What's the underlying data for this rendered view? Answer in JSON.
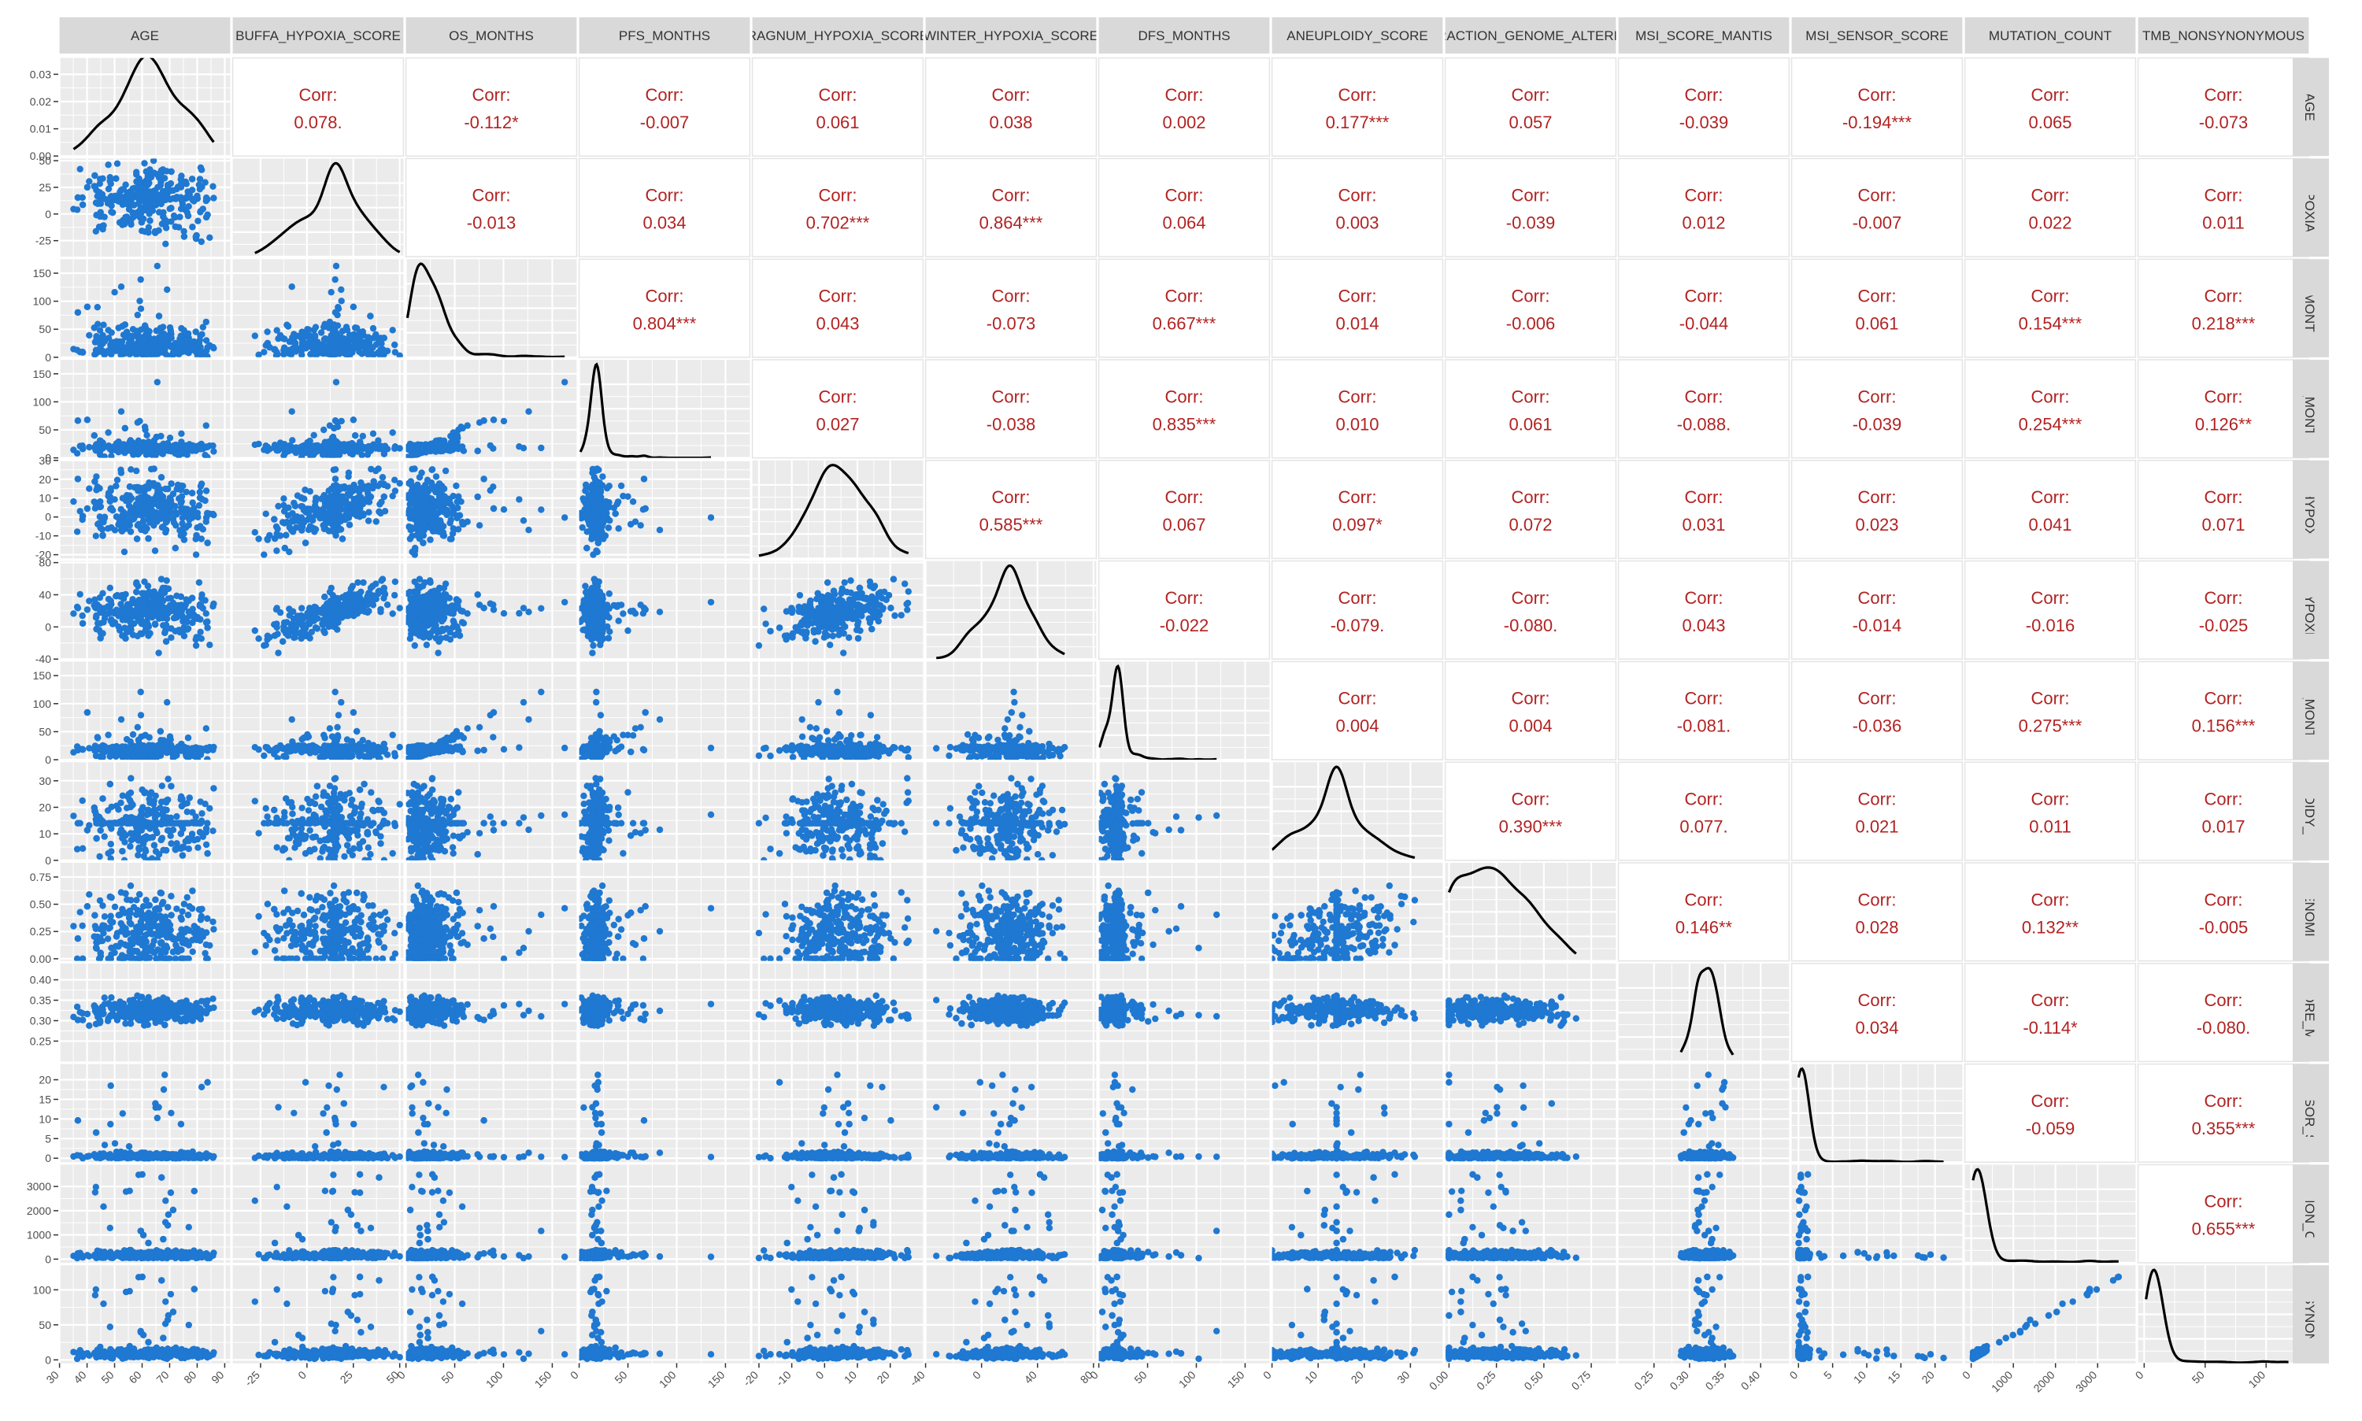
{
  "chart_data": {
    "type": "scatter",
    "title": "",
    "variables": [
      {
        "name": "AGE",
        "row_strip": "AGE",
        "lim": [
          30,
          92
        ],
        "ticks": [
          30,
          40,
          50,
          60,
          70,
          80,
          90
        ],
        "density_ticks": [
          0.0,
          0.01,
          0.02,
          0.03
        ],
        "density_tick_labels": [
          "0.00",
          "0.01",
          "0.02",
          "0.03"
        ],
        "density_lim": [
          0,
          0.036
        ]
      },
      {
        "name": "BUFFA_HYPOXIA_SCORE",
        "row_strip": "A_HYPOXIA_SC",
        "lim": [
          -40,
          52
        ],
        "ticks": [
          -25,
          0,
          25,
          50
        ],
        "row_ticks": [
          -25,
          0,
          25,
          50
        ]
      },
      {
        "name": "OS_MONTHS",
        "row_strip": "OS_MONTHS",
        "lim": [
          0,
          175
        ],
        "ticks": [
          0,
          50,
          100,
          150
        ]
      },
      {
        "name": "PFS_MONTHS",
        "row_strip": "PFS_MONTHS",
        "lim": [
          0,
          175
        ],
        "ticks": [
          0,
          50,
          100,
          150
        ]
      },
      {
        "name": "RAGNUM_HYPOXIA_SCORE",
        "row_strip": "UM_HYPOXIA_",
        "lim": [
          -22,
          30
        ],
        "ticks": [
          -20,
          -10,
          0,
          10,
          20
        ],
        "row_ticks": [
          -20,
          -10,
          0,
          10,
          20,
          30
        ]
      },
      {
        "name": "WINTER_HYPOXIA_SCORE",
        "row_strip": "ER_HYPOXIA_S",
        "lim": [
          -40,
          82
        ],
        "ticks": [
          -40,
          0,
          40,
          80
        ],
        "row_ticks": [
          -40,
          0,
          40,
          80
        ]
      },
      {
        "name": "DFS_MONTHS",
        "row_strip": "DFS_MONTHS",
        "lim": [
          0,
          175
        ],
        "ticks": [
          0,
          50,
          100,
          150
        ]
      },
      {
        "name": "ANEUPLOIDY_SCORE",
        "row_strip": "EUPLOIDY_SCO",
        "lim": [
          0,
          37
        ],
        "ticks": [
          0,
          10,
          20,
          30
        ]
      },
      {
        "name": "FRACTION_GENOME_ALTERED",
        "row_strip": "N_GENOME_A",
        "lim": [
          -0.02,
          0.88
        ],
        "ticks": [
          0.0,
          0.25,
          0.5,
          0.75
        ],
        "tick_labels": [
          "0.00",
          "0.25",
          "0.50",
          "0.75"
        ]
      },
      {
        "name": "MSI_SCORE_MANTIS",
        "row_strip": "_SCORE_MAN",
        "lim": [
          0.2,
          0.44
        ],
        "ticks": [
          0.25,
          0.3,
          0.35,
          0.4
        ],
        "row_ticks": [
          0.25,
          0.3,
          0.35,
          0.4
        ],
        "tick_labels": [
          "0.25",
          "0.30",
          "0.35",
          "0.40"
        ]
      },
      {
        "name": "MSI_SENSOR_SCORE",
        "row_strip": "_SENSOR_SCO",
        "lim": [
          -1,
          24
        ],
        "ticks": [
          0,
          5,
          10,
          15,
          20
        ]
      },
      {
        "name": "MUTATION_COUNT",
        "row_strip": "UTATION_COU",
        "lim": [
          -150,
          3900
        ],
        "ticks": [
          0,
          1000,
          2000,
          3000
        ]
      },
      {
        "name": "TMB_NONSYNONYMOUS",
        "row_strip": "NONSYNONYM",
        "lim": [
          -5,
          135
        ],
        "ticks": [
          0,
          50,
          100
        ]
      }
    ],
    "correlations": [
      [
        null,
        "0.078.",
        "-0.112*",
        "-0.007",
        "0.061",
        "0.038",
        "0.002",
        "0.177***",
        "0.057",
        "-0.039",
        "-0.194***",
        "0.065",
        "-0.073"
      ],
      [
        null,
        null,
        "-0.013",
        "0.034",
        "0.702***",
        "0.864***",
        "0.064",
        "0.003",
        "-0.039",
        "0.012",
        "-0.007",
        "0.022",
        "0.011"
      ],
      [
        null,
        null,
        null,
        "0.804***",
        "0.043",
        "-0.073",
        "0.667***",
        "0.014",
        "-0.006",
        "-0.044",
        "0.061",
        "0.154***",
        "0.218***"
      ],
      [
        null,
        null,
        null,
        null,
        "0.027",
        "-0.038",
        "0.835***",
        "0.010",
        "0.061",
        "-0.088.",
        "-0.039",
        "0.254***",
        "0.126**"
      ],
      [
        null,
        null,
        null,
        null,
        null,
        "0.585***",
        "0.067",
        "0.097*",
        "0.072",
        "0.031",
        "0.023",
        "0.041",
        "0.071"
      ],
      [
        null,
        null,
        null,
        null,
        null,
        null,
        "-0.022",
        "-0.079.",
        "-0.080.",
        "0.043",
        "-0.014",
        "-0.016",
        "-0.025"
      ],
      [
        null,
        null,
        null,
        null,
        null,
        null,
        null,
        "0.004",
        "0.004",
        "-0.081.",
        "-0.036",
        "0.275***",
        "0.156***"
      ],
      [
        null,
        null,
        null,
        null,
        null,
        null,
        null,
        null,
        "0.390***",
        "0.077.",
        "0.021",
        "0.011",
        "0.017"
      ],
      [
        null,
        null,
        null,
        null,
        null,
        null,
        null,
        null,
        null,
        "0.146**",
        "0.028",
        "0.132**",
        "-0.005"
      ],
      [
        null,
        null,
        null,
        null,
        null,
        null,
        null,
        null,
        null,
        null,
        "0.034",
        "-0.114*",
        "-0.080."
      ],
      [
        null,
        null,
        null,
        null,
        null,
        null,
        null,
        null,
        null,
        null,
        null,
        "-0.059",
        "0.355***"
      ],
      [
        null,
        null,
        null,
        null,
        null,
        null,
        null,
        null,
        null,
        null,
        null,
        null,
        "0.655***"
      ],
      [
        null,
        null,
        null,
        null,
        null,
        null,
        null,
        null,
        null,
        null,
        null,
        null,
        null
      ]
    ],
    "corr_label": "Corr:",
    "colors": {
      "points": "#1f78d1",
      "density": "#000000",
      "corr_text": "#b22222",
      "panel": "#ebebeb",
      "grid": "#ffffff",
      "strip": "#d9d9d9"
    }
  }
}
